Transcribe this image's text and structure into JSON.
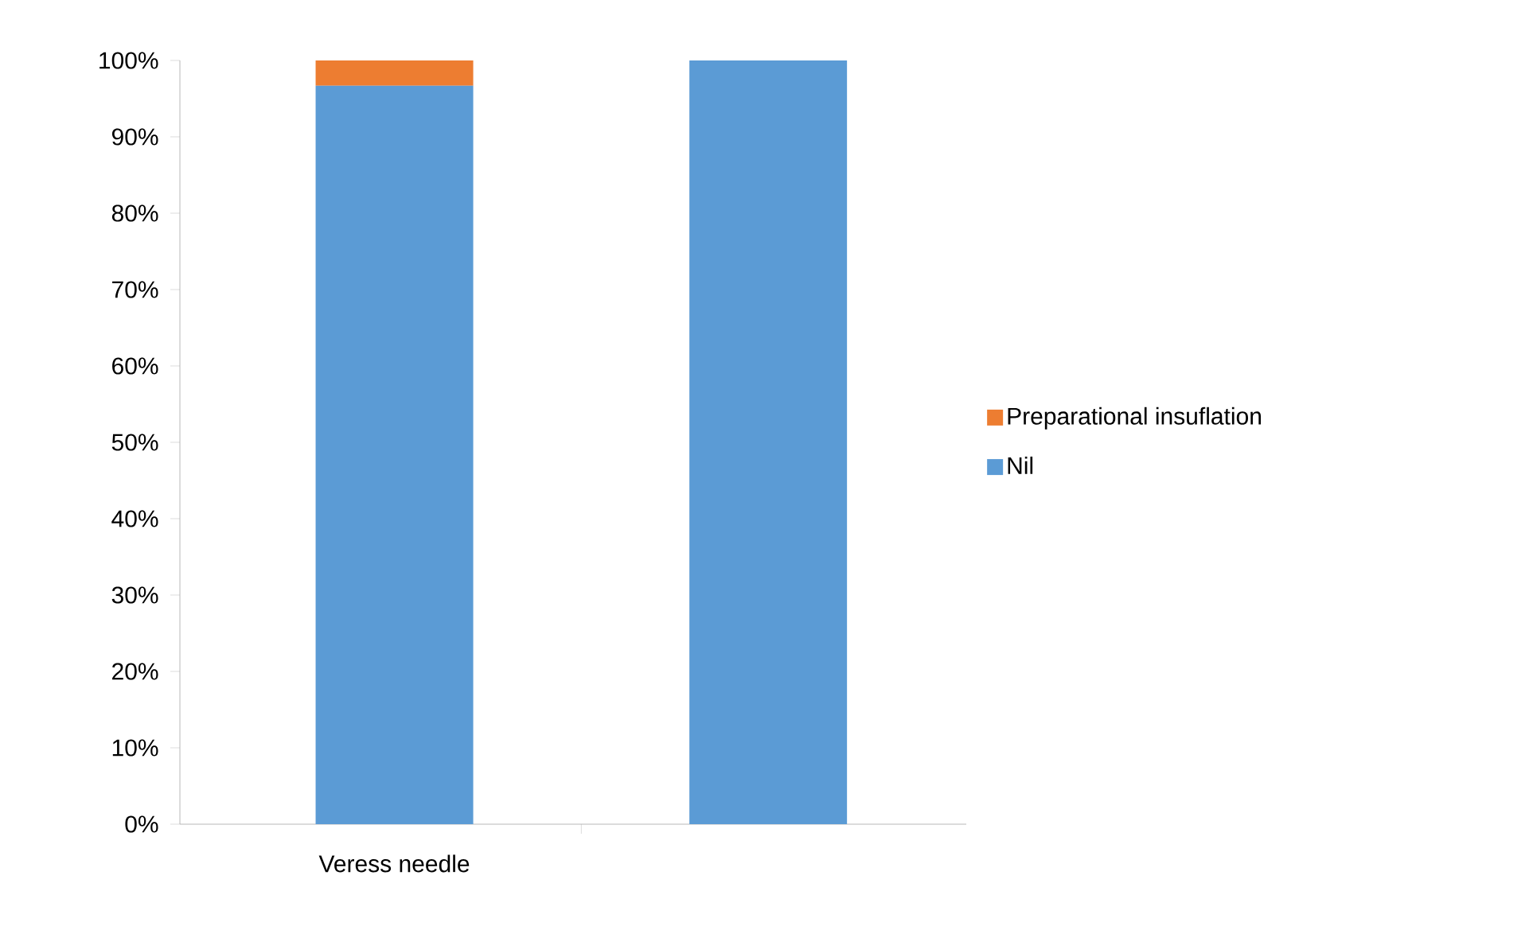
{
  "chart_data": {
    "type": "bar",
    "stacked": true,
    "categories": [
      "Veress needle",
      null
    ],
    "series": [
      {
        "name": "Nil",
        "color": "#5b9bd5",
        "values": [
          96.7,
          100
        ]
      },
      {
        "name": "Preparational  insuflation",
        "color": "#ed7d31",
        "values": [
          3.3,
          0
        ]
      }
    ],
    "ylim": [
      0,
      100
    ],
    "yticks": [
      {
        "value": 0,
        "label": "0%"
      },
      {
        "value": 10,
        "label": "10%"
      },
      {
        "value": 20,
        "label": "20%"
      },
      {
        "value": 30,
        "label": "30%"
      },
      {
        "value": 40,
        "label": "40%"
      },
      {
        "value": 50,
        "label": "50%"
      },
      {
        "value": 60,
        "label": "60%"
      },
      {
        "value": 70,
        "label": "70%"
      },
      {
        "value": 80,
        "label": "80%"
      },
      {
        "value": 90,
        "label": "90%"
      },
      {
        "value": 100,
        "label": "100%"
      }
    ],
    "grid": false,
    "legend": "right"
  }
}
